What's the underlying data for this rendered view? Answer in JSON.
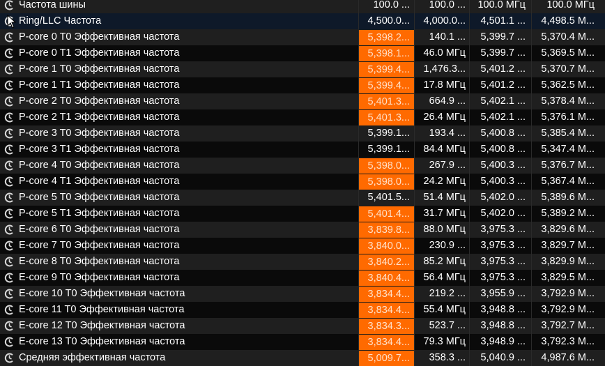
{
  "colors": {
    "alert": "#ff6a00",
    "selected_row": "#0e1929",
    "row_even": "#1f1f1f",
    "row_odd": "#0a0a0a"
  },
  "row_icon": "clock-gauge-icon",
  "selected_index": 1,
  "rows": [
    {
      "name": "Частота шины",
      "v": [
        "100.0 ...",
        "100.0 ...",
        "100.0 МГц",
        "100.0 МГц"
      ],
      "alert": false
    },
    {
      "name": "Ring/LLC Частота",
      "v": [
        "4,500.0...",
        "4,000.0...",
        "4,501.1 ...",
        "4,498.5 М..."
      ],
      "alert": false
    },
    {
      "name": "P-core 0 T0 Эффективная частота",
      "v": [
        "5,398.2...",
        "140.1 ...",
        "5,399.7 ...",
        "5,370.4 М..."
      ],
      "alert": true
    },
    {
      "name": "P-core 0 T1 Эффективная частота",
      "v": [
        "5,398.1...",
        "46.0 МГц",
        "5,399.7 ...",
        "5,369.5 М..."
      ],
      "alert": true
    },
    {
      "name": "P-core 1 T0 Эффективная частота",
      "v": [
        "5,399.4...",
        "1,476.3...",
        "5,401.2 ...",
        "5,370.7 М..."
      ],
      "alert": true
    },
    {
      "name": "P-core 1 T1 Эффективная частота",
      "v": [
        "5,399.4...",
        "17.8 МГц",
        "5,401.2 ...",
        "5,362.5 М..."
      ],
      "alert": true
    },
    {
      "name": "P-core 2 T0 Эффективная частота",
      "v": [
        "5,401.3...",
        "664.9 ...",
        "5,402.1 ...",
        "5,378.4 М..."
      ],
      "alert": true
    },
    {
      "name": "P-core 2 T1 Эффективная частота",
      "v": [
        "5,401.3...",
        "26.4 МГц",
        "5,402.1 ...",
        "5,376.1 М..."
      ],
      "alert": true
    },
    {
      "name": "P-core 3 T0 Эффективная частота",
      "v": [
        "5,399.1...",
        "193.4 ...",
        "5,400.8 ...",
        "5,385.4 М..."
      ],
      "alert": false
    },
    {
      "name": "P-core 3 T1 Эффективная частота",
      "v": [
        "5,399.1...",
        "84.4 МГц",
        "5,400.8 ...",
        "5,347.4 М..."
      ],
      "alert": false
    },
    {
      "name": "P-core 4 T0 Эффективная частота",
      "v": [
        "5,398.0...",
        "267.9 ...",
        "5,400.3 ...",
        "5,376.7 М..."
      ],
      "alert": true
    },
    {
      "name": "P-core 4 T1 Эффективная частота",
      "v": [
        "5,398.0...",
        "24.2 МГц",
        "5,400.3 ...",
        "5,367.4 М..."
      ],
      "alert": true
    },
    {
      "name": "P-core 5 T0 Эффективная частота",
      "v": [
        "5,401.5...",
        "51.4 МГц",
        "5,402.0 ...",
        "5,389.6 М..."
      ],
      "alert": false
    },
    {
      "name": "P-core 5 T1 Эффективная частота",
      "v": [
        "5,401.4...",
        "31.7 МГц",
        "5,402.0 ...",
        "5,389.2 М..."
      ],
      "alert": true
    },
    {
      "name": "E-core 6 T0 Эффективная частота",
      "v": [
        "3,839.8...",
        "88.0 МГц",
        "3,975.3 ...",
        "3,829.6 М..."
      ],
      "alert": true
    },
    {
      "name": "E-core 7 T0 Эффективная частота",
      "v": [
        "3,840.0...",
        "230.9 ...",
        "3,975.3 ...",
        "3,829.7 М..."
      ],
      "alert": true
    },
    {
      "name": "E-core 8 T0 Эффективная частота",
      "v": [
        "3,840.2...",
        "85.2 МГц",
        "3,975.3 ...",
        "3,829.9 М..."
      ],
      "alert": true
    },
    {
      "name": "E-core 9 T0 Эффективная частота",
      "v": [
        "3,840.4...",
        "56.4 МГц",
        "3,975.3 ...",
        "3,829.5 М..."
      ],
      "alert": true
    },
    {
      "name": "E-core 10 T0 Эффективная частота",
      "v": [
        "3,834.4...",
        "219.2 ...",
        "3,955.9 ...",
        "3,792.9 М..."
      ],
      "alert": true
    },
    {
      "name": "E-core 11 T0 Эффективная частота",
      "v": [
        "3,834.4...",
        "55.4 МГц",
        "3,948.8 ...",
        "3,792.9 М..."
      ],
      "alert": true
    },
    {
      "name": "E-core 12 T0 Эффективная частота",
      "v": [
        "3,834.3...",
        "523.7 ...",
        "3,948.8 ...",
        "3,792.7 М..."
      ],
      "alert": true
    },
    {
      "name": "E-core 13 T0 Эффективная частота",
      "v": [
        "3,834.4...",
        "79.3 МГц",
        "3,948.9 ...",
        "3,792.3 М..."
      ],
      "alert": true
    },
    {
      "name": "Средняя эффективная частота",
      "v": [
        "5,009.7...",
        "358.3 ...",
        "5,040.9 ...",
        "4,987.6 М..."
      ],
      "alert": true
    }
  ]
}
